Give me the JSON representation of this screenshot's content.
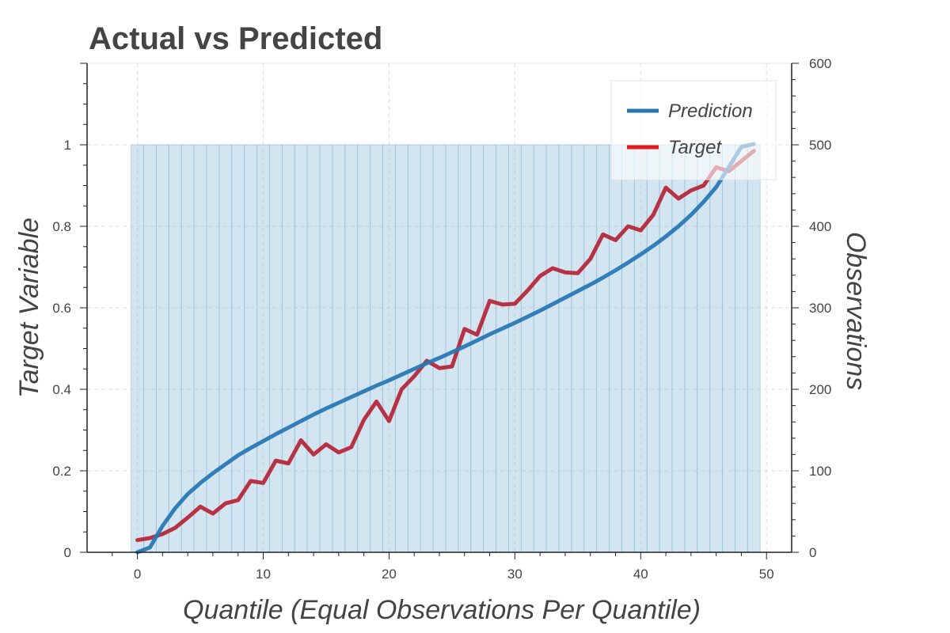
{
  "chart_data": {
    "type": "line",
    "title": "Actual vs Predicted",
    "xlabel": "Quantile (Equal Observations Per Quantile)",
    "ylabel": "Target Variable",
    "y2label": "Observations",
    "xlim": [
      -4,
      52
    ],
    "ylim": [
      0,
      1.2
    ],
    "y2lim": [
      0,
      600
    ],
    "x_ticks": [
      0,
      10,
      20,
      30,
      40,
      50
    ],
    "y_ticks": [
      0,
      0.2,
      0.4,
      0.6,
      0.8,
      1
    ],
    "y_tick_labels": [
      "0",
      "0.2",
      "0.4",
      "0.6",
      "0.8",
      "1"
    ],
    "y2_ticks": [
      0,
      100,
      200,
      300,
      400,
      500,
      600
    ],
    "grid": true,
    "legend_position": "top-right",
    "x": [
      0,
      1,
      2,
      3,
      4,
      5,
      6,
      7,
      8,
      9,
      10,
      11,
      12,
      13,
      14,
      15,
      16,
      17,
      18,
      19,
      20,
      21,
      22,
      23,
      24,
      25,
      26,
      27,
      28,
      29,
      30,
      31,
      32,
      33,
      34,
      35,
      36,
      37,
      38,
      39,
      40,
      41,
      42,
      43,
      44,
      45,
      46,
      47,
      48,
      49
    ],
    "series": [
      {
        "name": "Prediction",
        "color": "#2878b5",
        "values": [
          0.0,
          0.012,
          0.065,
          0.108,
          0.143,
          0.17,
          0.194,
          0.216,
          0.238,
          0.256,
          0.273,
          0.29,
          0.306,
          0.322,
          0.338,
          0.353,
          0.367,
          0.381,
          0.395,
          0.409,
          0.422,
          0.436,
          0.45,
          0.464,
          0.477,
          0.491,
          0.505,
          0.52,
          0.535,
          0.549,
          0.563,
          0.578,
          0.593,
          0.609,
          0.625,
          0.641,
          0.657,
          0.674,
          0.692,
          0.711,
          0.731,
          0.752,
          0.775,
          0.8,
          0.828,
          0.86,
          0.896,
          0.945,
          0.995,
          1.002
        ]
      },
      {
        "name": "Target",
        "color": "#b5283a",
        "values": [
          0.03,
          0.035,
          0.045,
          0.06,
          0.085,
          0.112,
          0.095,
          0.12,
          0.128,
          0.175,
          0.17,
          0.225,
          0.218,
          0.275,
          0.24,
          0.265,
          0.245,
          0.258,
          0.325,
          0.37,
          0.322,
          0.4,
          0.432,
          0.47,
          0.452,
          0.456,
          0.548,
          0.534,
          0.617,
          0.608,
          0.61,
          0.642,
          0.678,
          0.697,
          0.687,
          0.685,
          0.72,
          0.78,
          0.766,
          0.8,
          0.79,
          0.828,
          0.895,
          0.868,
          0.888,
          0.9,
          0.945,
          0.935,
          0.96,
          0.985
        ]
      }
    ],
    "bars": {
      "name": "Observations",
      "axis": "right",
      "color": "#a6cbe3",
      "values": [
        500,
        500,
        500,
        500,
        500,
        500,
        500,
        500,
        500,
        500,
        500,
        500,
        500,
        500,
        500,
        500,
        500,
        500,
        500,
        500,
        500,
        500,
        500,
        500,
        500,
        500,
        500,
        500,
        500,
        500,
        500,
        500,
        500,
        500,
        500,
        500,
        500,
        500,
        500,
        500,
        500,
        500,
        500,
        500,
        500,
        500,
        500,
        500,
        500,
        500
      ]
    }
  }
}
